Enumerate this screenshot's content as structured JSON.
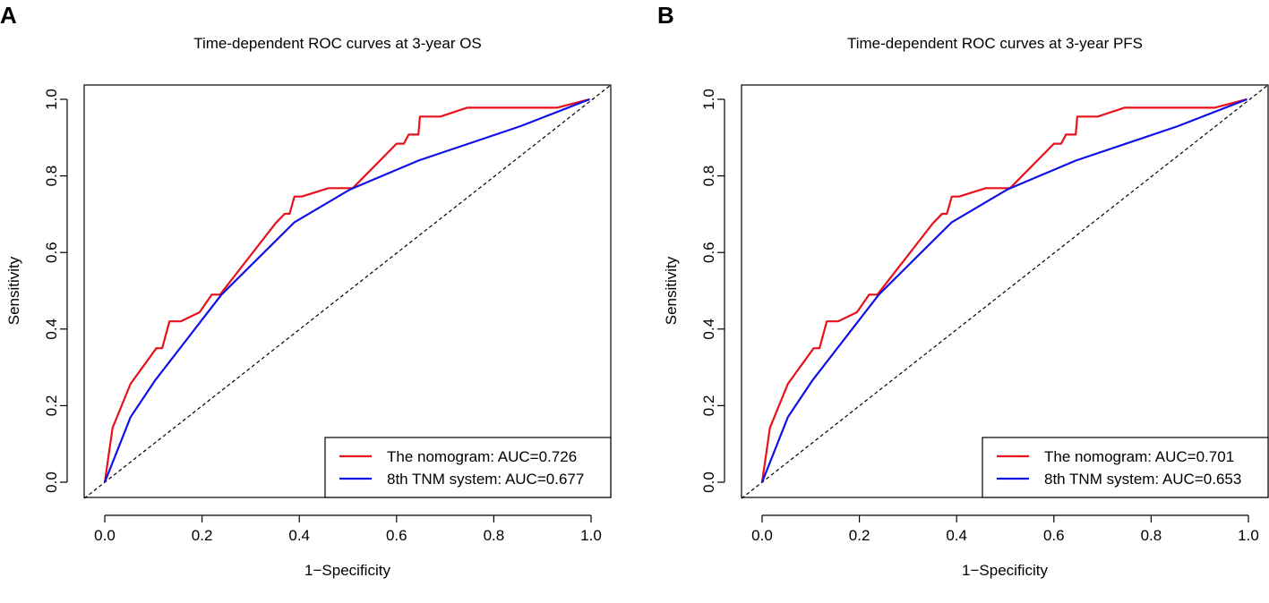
{
  "chart_data": [
    {
      "panel_label": "A",
      "type": "line",
      "title": "Time-dependent ROC curves at 3-year OS",
      "xlabel": "1−Specificity",
      "ylabel": "Sensitivity",
      "xlim": [
        0,
        1
      ],
      "ylim": [
        0,
        1
      ],
      "xticks": [
        "0.0",
        "0.2",
        "0.4",
        "0.6",
        "0.8",
        "1.0"
      ],
      "yticks": [
        "0.0",
        "0.2",
        "0.4",
        "0.6",
        "0.8",
        "1.0"
      ],
      "legend_position": "bottom-right",
      "reference_line": "diagonal dashed",
      "series": [
        {
          "name": "The nomogram",
          "legend": "The nomogram: AUC=0.726",
          "auc": 0.726,
          "color": "#e8101a",
          "x": [
            0.0,
            0.016,
            0.053,
            0.106,
            0.118,
            0.133,
            0.156,
            0.195,
            0.22,
            0.237,
            0.351,
            0.37,
            0.38,
            0.39,
            0.405,
            0.46,
            0.47,
            0.51,
            0.6,
            0.615,
            0.625,
            0.645,
            0.648,
            0.69,
            0.745,
            0.93,
            0.997
          ],
          "y": [
            0.0,
            0.142,
            0.257,
            0.35,
            0.35,
            0.42,
            0.42,
            0.444,
            0.49,
            0.49,
            0.676,
            0.701,
            0.701,
            0.746,
            0.746,
            0.768,
            0.768,
            0.768,
            0.884,
            0.884,
            0.908,
            0.908,
            0.955,
            0.955,
            0.978,
            0.978,
            1.0
          ]
        },
        {
          "name": "8th TNM system",
          "legend": "8th TNM system: AUC=0.677",
          "auc": 0.677,
          "color": "#1010e8",
          "x": [
            0.0,
            0.053,
            0.103,
            0.24,
            0.39,
            0.505,
            0.645,
            0.855,
            0.997
          ],
          "y": [
            0.0,
            0.17,
            0.265,
            0.49,
            0.679,
            0.765,
            0.84,
            0.93,
            1.0
          ]
        }
      ]
    },
    {
      "panel_label": "B",
      "type": "line",
      "title": "Time-dependent ROC curves at 3-year PFS",
      "xlabel": "1−Specificity",
      "ylabel": "Sensitivity",
      "xlim": [
        0,
        1
      ],
      "ylim": [
        0,
        1
      ],
      "xticks": [
        "0.0",
        "0.2",
        "0.4",
        "0.6",
        "0.8",
        "1.0"
      ],
      "yticks": [
        "0.0",
        "0.2",
        "0.4",
        "0.6",
        "0.8",
        "1.0"
      ],
      "legend_position": "bottom-right",
      "reference_line": "diagonal dashed",
      "series": [
        {
          "name": "The nomogram",
          "legend": "The nomogram: AUC=0.701",
          "auc": 0.701,
          "color": "#e8101a",
          "x": [
            0.0,
            0.016,
            0.053,
            0.106,
            0.118,
            0.133,
            0.156,
            0.195,
            0.22,
            0.237,
            0.351,
            0.37,
            0.38,
            0.39,
            0.405,
            0.46,
            0.47,
            0.51,
            0.6,
            0.615,
            0.625,
            0.645,
            0.648,
            0.69,
            0.745,
            0.93,
            0.997
          ],
          "y": [
            0.0,
            0.142,
            0.257,
            0.35,
            0.35,
            0.42,
            0.42,
            0.444,
            0.49,
            0.49,
            0.676,
            0.701,
            0.701,
            0.746,
            0.746,
            0.768,
            0.768,
            0.768,
            0.884,
            0.884,
            0.908,
            0.908,
            0.955,
            0.955,
            0.978,
            0.978,
            1.0
          ]
        },
        {
          "name": "8th TNM system",
          "legend": "8th TNM system: AUC=0.653",
          "auc": 0.653,
          "color": "#1010e8",
          "x": [
            0.0,
            0.053,
            0.103,
            0.24,
            0.39,
            0.505,
            0.645,
            0.855,
            0.997
          ],
          "y": [
            0.0,
            0.17,
            0.265,
            0.49,
            0.679,
            0.765,
            0.84,
            0.93,
            1.0
          ]
        }
      ]
    }
  ]
}
